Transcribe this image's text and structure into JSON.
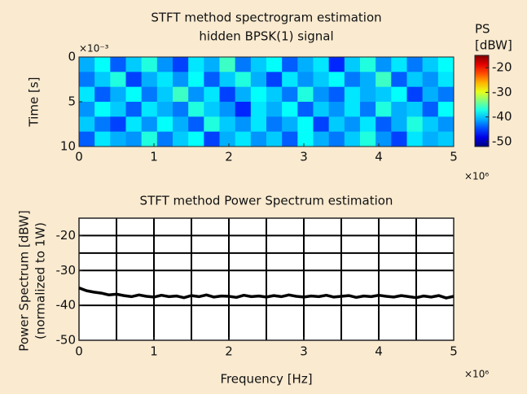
{
  "chart_data": [
    {
      "type": "heatmap",
      "title": [
        "STFT method spectrogram estimation",
        "hidden BPSK(1) signal"
      ],
      "ylabel": "Time [s]",
      "y_multiplier": "×10⁻³",
      "x_multiplier": "×10⁶",
      "xlim": [
        0,
        5
      ],
      "xticks": [
        0,
        1,
        2,
        3,
        4,
        5
      ],
      "ylim": [
        10,
        0
      ],
      "yticks": [
        0,
        5,
        10
      ],
      "colorbar_label": [
        "PS",
        "[dBW]"
      ],
      "clim": [
        -52,
        -15
      ],
      "cticks": [
        -20,
        -30,
        -40,
        -50
      ],
      "colormap": "jet",
      "values": [
        [
          -41,
          -38,
          -44,
          -40,
          -37,
          -42,
          -45,
          -39,
          -41,
          -36,
          -43,
          -40,
          -38,
          -44,
          -41,
          -39,
          -46,
          -40,
          -37,
          -42,
          -39,
          -43,
          -40,
          -38
        ],
        [
          -43,
          -40,
          -37,
          -45,
          -41,
          -39,
          -42,
          -38,
          -44,
          -40,
          -37,
          -41,
          -45,
          -39,
          -42,
          -40,
          -38,
          -43,
          -41,
          -36,
          -44,
          -40,
          -42,
          -39
        ],
        [
          -39,
          -44,
          -41,
          -38,
          -43,
          -40,
          -36,
          -42,
          -39,
          -45,
          -41,
          -38,
          -40,
          -43,
          -37,
          -42,
          -44,
          -39,
          -41,
          -40,
          -38,
          -45,
          -41,
          -43
        ],
        [
          -42,
          -38,
          -40,
          -44,
          -39,
          -41,
          -43,
          -37,
          -40,
          -42,
          -46,
          -39,
          -41,
          -38,
          -44,
          -40,
          -42,
          -39,
          -43,
          -37,
          -41,
          -40,
          -44,
          -38
        ],
        [
          -40,
          -43,
          -45,
          -39,
          -42,
          -38,
          -41,
          -44,
          -37,
          -40,
          -42,
          -39,
          -43,
          -41,
          -38,
          -45,
          -40,
          -42,
          -39,
          -44,
          -41,
          -37,
          -40,
          -42
        ],
        [
          -44,
          -39,
          -41,
          -42,
          -37,
          -43,
          -40,
          -38,
          -45,
          -41,
          -39,
          -42,
          -40,
          -44,
          -38,
          -41,
          -43,
          -40,
          -37,
          -42,
          -45,
          -39,
          -41,
          -40
        ]
      ]
    },
    {
      "type": "line",
      "title": "STFT method Power Spectrum estimation",
      "ylabel": [
        "Power Spectrum [dBW]",
        "(normalized to 1W)"
      ],
      "xlabel": "Frequency [Hz]",
      "x_multiplier": "×10⁶",
      "xlim": [
        0,
        5
      ],
      "xticks": [
        0,
        1,
        2,
        3,
        4,
        5
      ],
      "ylim": [
        -50,
        -15
      ],
      "yticks": [
        -20,
        -30,
        -40,
        -50
      ],
      "grid": true,
      "xgrid": [
        0.5,
        1,
        1.5,
        2,
        2.5,
        3,
        3.5,
        4,
        4.5
      ],
      "ygrid": [
        -20,
        -25,
        -30,
        -40
      ],
      "color": "#000000",
      "x": [
        0,
        0.1,
        0.2,
        0.3,
        0.4,
        0.5,
        0.6,
        0.7,
        0.8,
        0.9,
        1,
        1.1,
        1.2,
        1.3,
        1.4,
        1.5,
        1.6,
        1.7,
        1.8,
        1.9,
        2,
        2.1,
        2.2,
        2.3,
        2.4,
        2.5,
        2.6,
        2.7,
        2.8,
        2.9,
        3,
        3.1,
        3.2,
        3.3,
        3.4,
        3.5,
        3.6,
        3.7,
        3.8,
        3.9,
        4,
        4.1,
        4.2,
        4.3,
        4.4,
        4.5,
        4.6,
        4.7,
        4.8,
        4.9,
        5
      ],
      "values": [
        -35.0,
        -35.8,
        -36.2,
        -36.5,
        -37.0,
        -36.8,
        -37.2,
        -37.5,
        -37.0,
        -37.4,
        -37.6,
        -37.1,
        -37.5,
        -37.3,
        -37.8,
        -37.2,
        -37.5,
        -37.0,
        -37.6,
        -37.3,
        -37.4,
        -37.7,
        -37.1,
        -37.5,
        -37.3,
        -37.6,
        -37.2,
        -37.5,
        -37.0,
        -37.4,
        -37.6,
        -37.3,
        -37.5,
        -37.1,
        -37.6,
        -37.4,
        -37.2,
        -37.7,
        -37.3,
        -37.5,
        -37.1,
        -37.4,
        -37.6,
        -37.2,
        -37.5,
        -37.8,
        -37.3,
        -37.6,
        -37.2,
        -37.9,
        -37.4
      ]
    }
  ]
}
